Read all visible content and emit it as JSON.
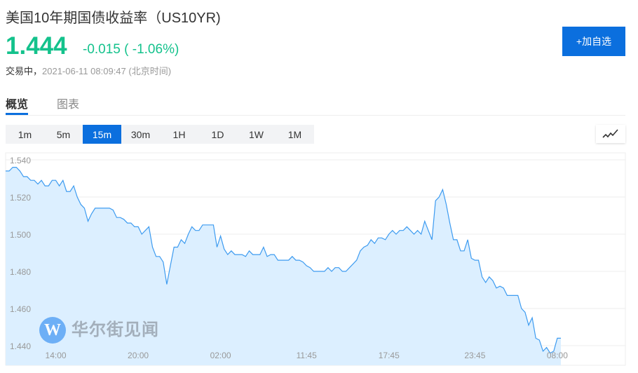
{
  "header": {
    "title": "美国10年期国债收益率（US10YR)",
    "price": "1.444",
    "change": "-0.015 ( -1.06%)",
    "status_label": "交易中，",
    "timestamp": "2021-06-11 08:09:47 (北京时间)",
    "add_watchlist_label": "+加自选"
  },
  "tabs": [
    {
      "label": "概览",
      "active": true
    },
    {
      "label": "图表",
      "active": false
    }
  ],
  "periods": [
    {
      "label": "1m",
      "active": false
    },
    {
      "label": "5m",
      "active": false
    },
    {
      "label": "15m",
      "active": true
    },
    {
      "label": "30m",
      "active": false
    },
    {
      "label": "1H",
      "active": false
    },
    {
      "label": "1D",
      "active": false
    },
    {
      "label": "1W",
      "active": false
    },
    {
      "label": "1M",
      "active": false
    }
  ],
  "chart_type_icon": "line-chart-icon",
  "watermark": {
    "logo_letter": "W",
    "text": "华尔街见闻"
  },
  "colors": {
    "accent": "#0b6fde",
    "up_down": "#14c28c",
    "line": "#3d9bf0",
    "fill": "#dcefff"
  },
  "chart_data": {
    "type": "area",
    "title": "",
    "xlabel": "",
    "ylabel": "",
    "ylim": [
      1.44,
      1.54
    ],
    "y_ticks": [
      "1.540",
      "1.520",
      "1.500",
      "1.480",
      "1.460",
      "1.440"
    ],
    "x_ticks": [
      {
        "label": "14:00",
        "index": 14
      },
      {
        "label": "20:00",
        "index": 37
      },
      {
        "label": "02:00",
        "index": 60
      },
      {
        "label": "11:45",
        "index": 84
      },
      {
        "label": "17:45",
        "index": 107
      },
      {
        "label": "23:45",
        "index": 131
      },
      {
        "label": "08:00",
        "index": 154
      }
    ],
    "grid": true,
    "values": [
      1.534,
      1.534,
      1.536,
      1.536,
      1.534,
      1.531,
      1.531,
      1.529,
      1.529,
      1.527,
      1.529,
      1.526,
      1.526,
      1.529,
      1.529,
      1.526,
      1.529,
      1.523,
      1.523,
      1.526,
      1.52,
      1.516,
      1.514,
      1.507,
      1.511,
      1.514,
      1.514,
      1.514,
      1.514,
      1.514,
      1.513,
      1.509,
      1.509,
      1.508,
      1.506,
      1.506,
      1.504,
      1.504,
      1.5,
      1.502,
      1.504,
      1.493,
      1.488,
      1.488,
      1.485,
      1.473,
      1.483,
      1.493,
      1.493,
      1.497,
      1.495,
      1.5,
      1.504,
      1.502,
      1.502,
      1.505,
      1.505,
      1.505,
      1.505,
      1.493,
      1.499,
      1.492,
      1.489,
      1.491,
      1.489,
      1.489,
      1.489,
      1.488,
      1.491,
      1.489,
      1.489,
      1.489,
      1.493,
      1.488,
      1.489,
      1.489,
      1.486,
      1.486,
      1.486,
      1.486,
      1.488,
      1.486,
      1.486,
      1.485,
      1.483,
      1.482,
      1.48,
      1.48,
      1.48,
      1.48,
      1.482,
      1.48,
      1.482,
      1.482,
      1.48,
      1.48,
      1.482,
      1.484,
      1.486,
      1.491,
      1.493,
      1.494,
      1.497,
      1.495,
      1.498,
      1.498,
      1.497,
      1.5,
      1.502,
      1.5,
      1.502,
      1.502,
      1.504,
      1.502,
      1.5,
      1.502,
      1.5,
      1.507,
      1.502,
      1.497,
      1.518,
      1.52,
      1.524,
      1.516,
      1.506,
      1.497,
      1.497,
      1.491,
      1.491,
      1.497,
      1.487,
      1.486,
      1.486,
      1.477,
      1.474,
      1.477,
      1.475,
      1.471,
      1.472,
      1.471,
      1.467,
      1.467,
      1.467,
      1.467,
      1.46,
      1.458,
      1.451,
      1.455,
      1.444,
      1.443,
      1.437,
      1.439,
      1.436,
      1.437,
      1.444,
      1.444
    ]
  }
}
